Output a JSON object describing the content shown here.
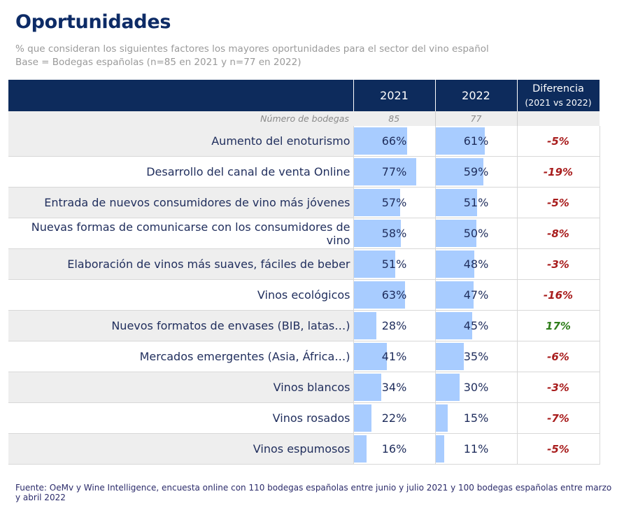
{
  "title": "Oportunidades",
  "subtitle_line1": "% que consideran los siguientes factores los mayores oportunidades para el sector del vino español",
  "subtitle_line2": "Base = Bodegas españolas (n=85 en 2021 y n=77 en 2022)",
  "header": {
    "col2021": "2021",
    "col2022": "2022",
    "diff": "Diferencia",
    "diff_sub": "(2021 vs 2022)"
  },
  "count_row": {
    "label": "Número de bodegas",
    "n2021": "85",
    "n2022": "77"
  },
  "colors": {
    "header_bg": "#0d2b5c",
    "bar": "#a8ccff",
    "negative": "#a81c1c",
    "positive": "#2e7d1a"
  },
  "chart_data": {
    "type": "table",
    "title": "Oportunidades",
    "series_names": [
      "2021",
      "2022"
    ],
    "categories": [
      "Aumento del enoturismo",
      "Desarrollo del canal de venta Online",
      "Entrada de nuevos consumidores de vino más jóvenes",
      "Nuevas formas de comunicarse con los consumidores de vino",
      "Elaboración de vinos más suaves, fáciles de beber",
      "Vinos ecológicos",
      "Nuevos formatos de envases (BIB, latas…)",
      "Mercados emergentes (Asia, África…)",
      "Vinos blancos",
      "Vinos rosados",
      "Vinos espumosos"
    ],
    "values_2021": [
      66,
      77,
      57,
      58,
      51,
      63,
      28,
      41,
      34,
      22,
      16
    ],
    "values_2022": [
      61,
      59,
      51,
      50,
      48,
      47,
      45,
      35,
      30,
      15,
      11
    ],
    "labels_2021": [
      "66%",
      "77%",
      "57%",
      "58%",
      "51%",
      "63%",
      "28%",
      "41%",
      "34%",
      "22%",
      "16%"
    ],
    "labels_2022": [
      "61%",
      "59%",
      "51%",
      "50%",
      "48%",
      "47%",
      "45%",
      "35%",
      "30%",
      "15%",
      "11%"
    ],
    "differences": [
      "-5%",
      "-19%",
      "-5%",
      "-8%",
      "-3%",
      "-16%",
      "17%",
      "-6%",
      "-3%",
      "-7%",
      "-5%"
    ],
    "bar_scale_max": 100
  },
  "source": "Fuente: OeMv y Wine Intelligence, encuesta online con 110 bodegas españolas entre junio y julio 2021 y 100  bodegas españolas entre marzo y abril 2022"
}
